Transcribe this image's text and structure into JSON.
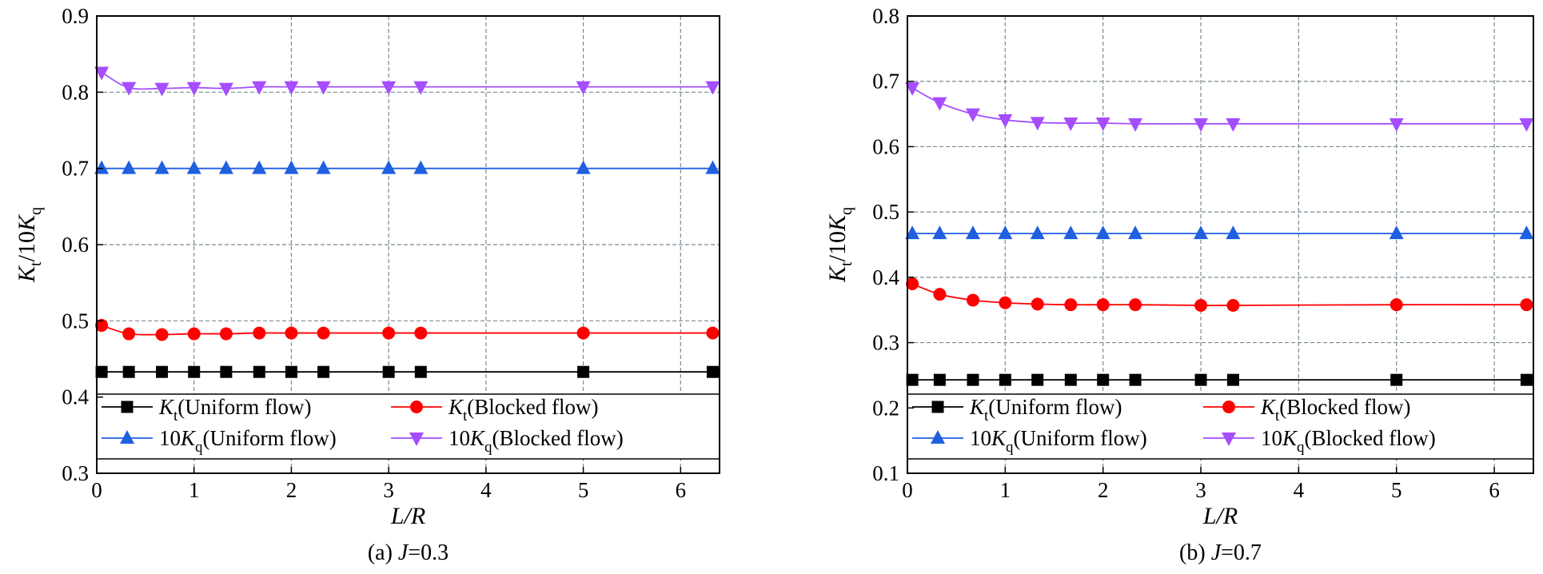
{
  "chart_data": [
    {
      "type": "line",
      "caption": {
        "prefix": "(a) ",
        "var": "J",
        "rest": "=0.3"
      },
      "xlabel": "L/R",
      "ylabel": {
        "base": "K",
        "sub": "t",
        "mid": "/10",
        "base2": "K",
        "sub2": "q"
      },
      "xlim": [
        0,
        6.4
      ],
      "ylim": [
        0.3,
        0.9
      ],
      "xticks": [
        "0",
        "1",
        "2",
        "3",
        "4",
        "5",
        "6"
      ],
      "yticks": [
        "0.3",
        "0.4",
        "0.5",
        "0.6",
        "0.7",
        "0.8",
        "0.9"
      ],
      "grid": true,
      "legend_position": "bottom",
      "x": [
        0.05,
        0.33,
        0.67,
        1.0,
        1.33,
        1.67,
        2.0,
        2.33,
        3.0,
        3.33,
        5.0,
        6.33
      ],
      "series": [
        {
          "name": {
            "pre": "",
            "base": "K",
            "sub": "t",
            "post": "(Uniform flow)"
          },
          "marker": "square",
          "color": "#000000",
          "values": [
            0.433,
            0.433,
            0.433,
            0.433,
            0.433,
            0.433,
            0.433,
            0.433,
            0.433,
            0.433,
            0.433,
            0.433
          ]
        },
        {
          "name": {
            "pre": "",
            "base": "K",
            "sub": "t",
            "post": "(Blocked flow)"
          },
          "marker": "circle",
          "color": "#ff0000",
          "values": [
            0.494,
            0.483,
            0.482,
            0.483,
            0.483,
            0.484,
            0.484,
            0.484,
            0.484,
            0.484,
            0.484,
            0.484
          ]
        },
        {
          "name": {
            "pre": "10",
            "base": "K",
            "sub": "q",
            "post": "(Uniform flow)"
          },
          "marker": "triangle-up",
          "color": "#1f5fe0",
          "values": [
            0.7,
            0.7,
            0.7,
            0.7,
            0.7,
            0.7,
            0.7,
            0.7,
            0.7,
            0.7,
            0.7,
            0.7
          ]
        },
        {
          "name": {
            "pre": "10",
            "base": "K",
            "sub": "q",
            "post": "(Blocked flow)"
          },
          "marker": "triangle-down",
          "color": "#a64dff",
          "values": [
            0.826,
            0.806,
            0.805,
            0.806,
            0.805,
            0.807,
            0.807,
            0.807,
            0.807,
            0.807,
            0.807,
            0.807
          ]
        }
      ]
    },
    {
      "type": "line",
      "caption": {
        "prefix": "(b) ",
        "var": "J",
        "rest": "=0.7"
      },
      "xlabel": "L/R",
      "ylabel": {
        "base": "K",
        "sub": "t",
        "mid": "/10",
        "base2": "K",
        "sub2": "q"
      },
      "xlim": [
        0,
        6.4
      ],
      "ylim": [
        0.1,
        0.8
      ],
      "xticks": [
        "0",
        "1",
        "2",
        "3",
        "4",
        "5",
        "6"
      ],
      "yticks": [
        "0.1",
        "0.2",
        "0.3",
        "0.4",
        "0.5",
        "0.6",
        "0.7",
        "0.8"
      ],
      "grid": true,
      "legend_position": "bottom",
      "x": [
        0.05,
        0.33,
        0.67,
        1.0,
        1.33,
        1.67,
        2.0,
        2.33,
        3.0,
        3.33,
        5.0,
        6.33
      ],
      "series": [
        {
          "name": {
            "pre": "",
            "base": "K",
            "sub": "t",
            "post": "(Uniform flow)"
          },
          "marker": "square",
          "color": "#000000",
          "values": [
            0.243,
            0.243,
            0.243,
            0.243,
            0.243,
            0.243,
            0.243,
            0.243,
            0.243,
            0.243,
            0.243,
            0.243
          ]
        },
        {
          "name": {
            "pre": "",
            "base": "K",
            "sub": "t",
            "post": "(Blocked flow)"
          },
          "marker": "circle",
          "color": "#ff0000",
          "values": [
            0.39,
            0.374,
            0.365,
            0.361,
            0.359,
            0.358,
            0.358,
            0.358,
            0.357,
            0.357,
            0.358,
            0.358
          ]
        },
        {
          "name": {
            "pre": "10",
            "base": "K",
            "sub": "q",
            "post": "(Uniform flow)"
          },
          "marker": "triangle-up",
          "color": "#1f5fe0",
          "values": [
            0.467,
            0.467,
            0.467,
            0.467,
            0.467,
            0.467,
            0.467,
            0.467,
            0.467,
            0.467,
            0.467,
            0.467
          ]
        },
        {
          "name": {
            "pre": "10",
            "base": "K",
            "sub": "q",
            "post": "(Blocked flow)"
          },
          "marker": "triangle-down",
          "color": "#a64dff",
          "values": [
            0.69,
            0.667,
            0.65,
            0.641,
            0.637,
            0.636,
            0.636,
            0.635,
            0.635,
            0.635,
            0.635,
            0.635
          ]
        }
      ]
    }
  ]
}
